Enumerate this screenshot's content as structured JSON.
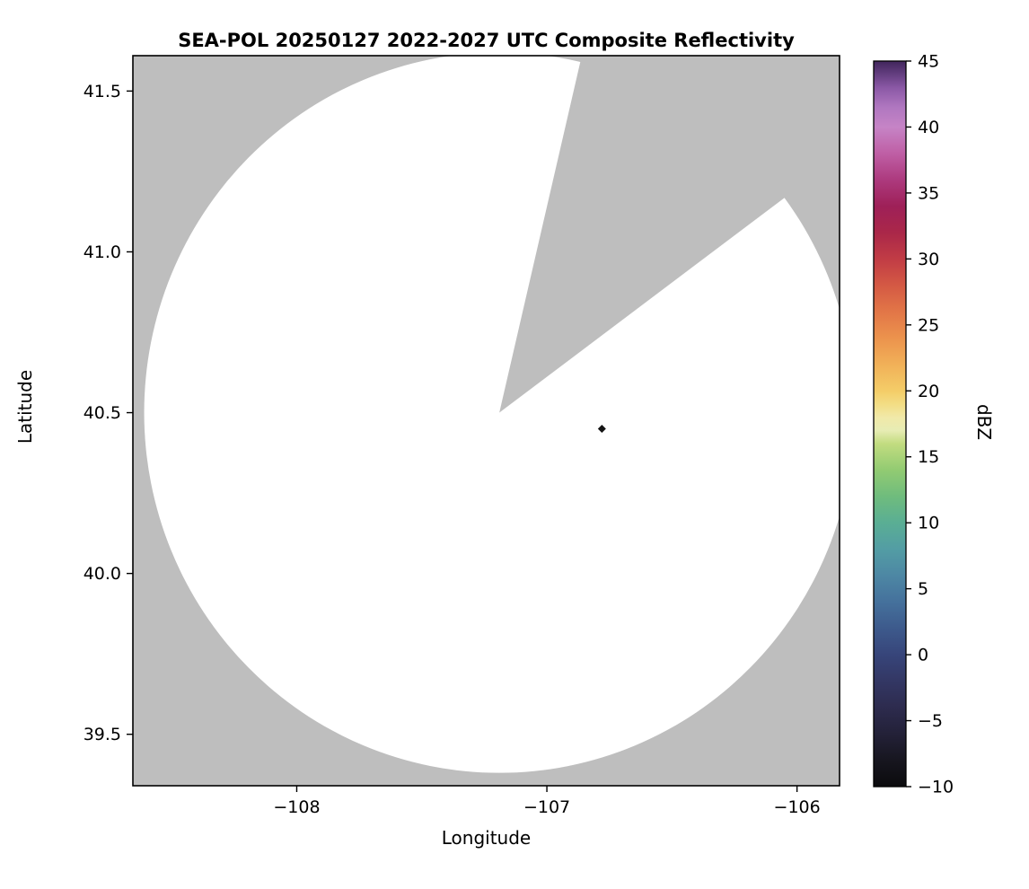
{
  "figure": {
    "title": "SEA-POL 20250127 2022-2027 UTC Composite Reflectivity"
  },
  "chart_data": {
    "type": "radar-composite-reflectivity-map",
    "title": "SEA-POL 20250127 2022-2027 UTC Composite Reflectivity",
    "xlabel": "Longitude",
    "ylabel": "Latitude",
    "xlim": [
      -108.655,
      -105.83
    ],
    "ylim": [
      39.34,
      41.61
    ],
    "xticks": [
      -108,
      -107,
      -106
    ],
    "xtick_labels": [
      "−108",
      "−107",
      "−106"
    ],
    "yticks": [
      39.5,
      40.0,
      40.5,
      41.0,
      41.5
    ],
    "ytick_labels": [
      "39.5",
      "40.0",
      "40.5",
      "41.0",
      "41.5"
    ],
    "grid": false,
    "nodata_color": "#bebebe",
    "coverage_color": "#ffffff",
    "radar": {
      "center_lon": -107.19,
      "center_lat": 40.5,
      "radius_deg_lon": 1.42,
      "radius_deg_lat": 1.12,
      "missing_sector_start_az_deg": 13,
      "missing_sector_end_az_deg": 53
    },
    "echoes": [
      {
        "lon": -106.78,
        "lat": 40.45,
        "dbz_approx": -10,
        "color": "#141414"
      }
    ],
    "colorbar": {
      "label": "dBZ",
      "min": -10,
      "max": 45,
      "orientation": "vertical",
      "ticks": [
        -10,
        -5,
        0,
        5,
        10,
        15,
        20,
        25,
        30,
        35,
        40,
        45
      ],
      "tick_labels": [
        "−10",
        "−5",
        "0",
        "5",
        "10",
        "15",
        "20",
        "25",
        "30",
        "35",
        "40",
        "45"
      ],
      "stops": [
        {
          "value": -10,
          "color": "#0b0b0d"
        },
        {
          "value": -8,
          "color": "#17161f"
        },
        {
          "value": -6,
          "color": "#232138"
        },
        {
          "value": -4,
          "color": "#2d2b4e"
        },
        {
          "value": -2,
          "color": "#333764"
        },
        {
          "value": 0,
          "color": "#37457a"
        },
        {
          "value": 2,
          "color": "#3d5a8c"
        },
        {
          "value": 4,
          "color": "#45719c"
        },
        {
          "value": 6,
          "color": "#4d87a4"
        },
        {
          "value": 8,
          "color": "#539da4"
        },
        {
          "value": 10,
          "color": "#5aae94"
        },
        {
          "value": 12,
          "color": "#6fbc7d"
        },
        {
          "value": 14,
          "color": "#92cb72"
        },
        {
          "value": 16,
          "color": "#c2dc80"
        },
        {
          "value": 17,
          "color": "#e7ecb4"
        },
        {
          "value": 18,
          "color": "#f1e9a8"
        },
        {
          "value": 19,
          "color": "#f3dd84"
        },
        {
          "value": 20,
          "color": "#f4cd68"
        },
        {
          "value": 22,
          "color": "#f1b058"
        },
        {
          "value": 24,
          "color": "#ec934d"
        },
        {
          "value": 26,
          "color": "#e27647"
        },
        {
          "value": 28,
          "color": "#d45944"
        },
        {
          "value": 30,
          "color": "#c13c45"
        },
        {
          "value": 32,
          "color": "#aa2749"
        },
        {
          "value": 34,
          "color": "#9e2058"
        },
        {
          "value": 36,
          "color": "#ad3a7e"
        },
        {
          "value": 38,
          "color": "#bf5fa5"
        },
        {
          "value": 40,
          "color": "#c684c6"
        },
        {
          "value": 41.5,
          "color": "#b077c0"
        },
        {
          "value": 43,
          "color": "#8a58a5"
        },
        {
          "value": 44,
          "color": "#643e80"
        },
        {
          "value": 45,
          "color": "#41265c"
        }
      ]
    }
  }
}
